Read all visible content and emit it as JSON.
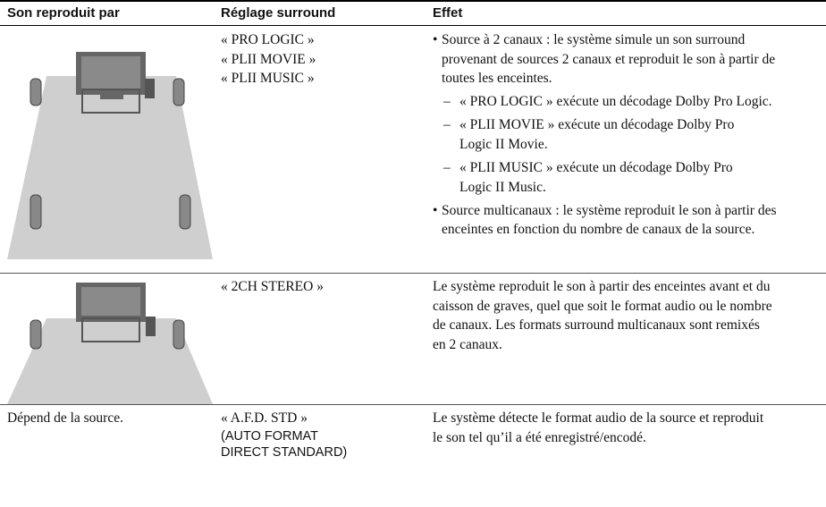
{
  "table": {
    "headers": [
      "Son reproduit par",
      "Réglage surround",
      "Effet"
    ],
    "rows": [
      {
        "source": null,
        "settings": [
          "« PRO LOGIC »",
          "« PLII MOVIE »",
          "« PLII MUSIC »"
        ],
        "effect": [
          {
            "kind": "bullet",
            "lines": [
              "Source à 2 canaux : le système simule un son surround",
              "provenant de sources 2 canaux et reproduit le son à partir de",
              "toutes les enceintes."
            ]
          },
          {
            "kind": "dash",
            "lines": [
              "« PRO LOGIC » exécute un décodage Dolby Pro Logic."
            ]
          },
          {
            "kind": "dash",
            "lines": [
              "« PLII MOVIE » exécute un décodage Dolby Pro",
              "Logic II Movie."
            ]
          },
          {
            "kind": "dash",
            "lines": [
              "« PLII MUSIC » exécute un décodage Dolby Pro",
              "Logic II Music."
            ]
          },
          {
            "kind": "bullet",
            "lines": [
              "Source multicanaux : le système reproduit le son à partir des",
              "enceintes en fonction du nombre de canaux de la source."
            ]
          }
        ]
      },
      {
        "source": null,
        "settings": [
          "« 2CH STEREO »"
        ],
        "effect": [
          {
            "kind": "plain",
            "lines": [
              "Le système reproduit le son à partir des enceintes avant et du",
              "caisson de graves, quel que soit le format audio ou le nombre",
              "de canaux. Les formats surround multicanaux sont remixés",
              "en 2 canaux."
            ]
          }
        ]
      },
      {
        "source": "Dépend de la source.",
        "settings": [
          "« A.F.D. STD »"
        ],
        "setting_note": [
          "(AUTO FORMAT",
          "DIRECT STANDARD)"
        ],
        "effect": [
          {
            "kind": "plain",
            "lines": [
              "Le système détecte le format audio de la source et reproduit",
              "le son tel qu’il a été enregistré/encodé."
            ]
          }
        ]
      }
    ]
  }
}
